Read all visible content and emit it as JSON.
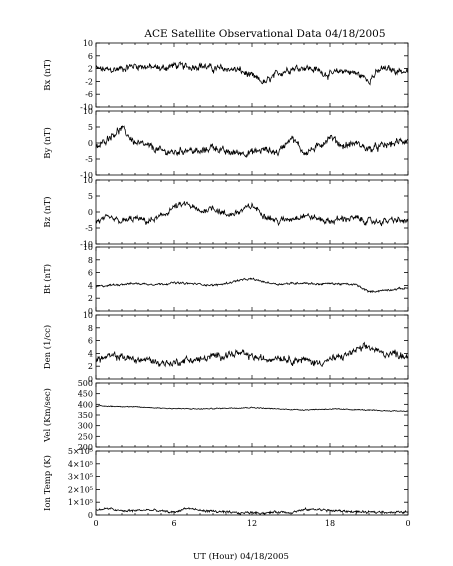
{
  "chart_data": {
    "type": "line",
    "title": "ACE Satellite Observational Data   04/18/2005",
    "xlabel": "UT (Hour)   04/18/2005",
    "x_ticks": [
      "0",
      "6",
      "12",
      "18",
      "0"
    ],
    "xlim": [
      0,
      24
    ],
    "panels": [
      {
        "ylabel": "Bx (nT)",
        "ylim": [
          -10,
          10
        ],
        "yticks": [
          "10",
          "6",
          "2",
          "-2",
          "-6",
          "-10"
        ],
        "series": [
          {
            "x": [
              0,
              1,
              2,
              3,
              4,
              5,
              6,
              7,
              8,
              9,
              10,
              11,
              12,
              13,
              14,
              15,
              16,
              17,
              18,
              19,
              20,
              21,
              22,
              23,
              24
            ],
            "values": [
              2,
              1.5,
              2,
              3,
              2.5,
              2,
              3,
              2.5,
              3,
              2,
              2,
              1.5,
              -0.5,
              -2.5,
              0.5,
              2,
              2.5,
              1.5,
              0,
              1.5,
              0.5,
              -1.5,
              2,
              1.5,
              1
            ]
          }
        ]
      },
      {
        "ylabel": "By (nT)",
        "ylim": [
          -10,
          10
        ],
        "yticks": [
          "10",
          "5",
          "0",
          "-5",
          "-10"
        ],
        "series": [
          {
            "x": [
              0,
              1,
              2,
              3,
              4,
              5,
              6,
              7,
              8,
              9,
              10,
              11,
              12,
              13,
              14,
              15,
              16,
              17,
              18,
              19,
              20,
              21,
              22,
              23,
              24
            ],
            "values": [
              -2,
              2,
              4.5,
              0,
              -1,
              -2.5,
              -3,
              -2,
              -3,
              -1,
              -3,
              -3,
              -3,
              -2,
              -3,
              2,
              -3,
              -1.5,
              2,
              -1,
              0,
              -2,
              -1,
              0,
              1
            ]
          }
        ]
      },
      {
        "ylabel": "Bz (nT)",
        "ylim": [
          -10,
          10
        ],
        "yticks": [
          "10",
          "5",
          "0",
          "-5",
          "-10"
        ],
        "series": [
          {
            "x": [
              0,
              1,
              2,
              3,
              4,
              5,
              6,
              7,
              8,
              9,
              10,
              11,
              12,
              13,
              14,
              15,
              16,
              17,
              18,
              19,
              20,
              21,
              22,
              23,
              24
            ],
            "values": [
              -3,
              -2,
              -3,
              -2,
              -3,
              -1.5,
              1.5,
              2.5,
              0,
              1.5,
              -1,
              0,
              2,
              -1,
              -3,
              -2,
              -1,
              -2,
              -3,
              -2,
              -2,
              -3,
              -3,
              -2.5,
              -3
            ]
          }
        ]
      },
      {
        "ylabel": "Bt (nT)",
        "ylim": [
          0,
          10
        ],
        "yticks": [
          "10",
          "8",
          "6",
          "4",
          "2",
          "0"
        ],
        "series": [
          {
            "x": [
              0,
              1,
              2,
              3,
              4,
              5,
              6,
              7,
              8,
              9,
              10,
              11,
              12,
              13,
              14,
              15,
              16,
              17,
              18,
              19,
              20,
              21,
              22,
              23,
              24
            ],
            "values": [
              3.8,
              4,
              4.2,
              4.3,
              4.2,
              4.2,
              4.4,
              4.3,
              4.2,
              4,
              4.3,
              4.8,
              5,
              4.5,
              4.2,
              4.3,
              4.4,
              4.2,
              4.3,
              4.2,
              4.1,
              3,
              3.2,
              3.4,
              3.6
            ]
          }
        ]
      },
      {
        "ylabel": "Den (1/cc)",
        "ylim": [
          0,
          10
        ],
        "yticks": [
          "10",
          "8",
          "6",
          "4",
          "2",
          "0"
        ],
        "series": [
          {
            "x": [
              0,
              1,
              2,
              3,
              4,
              5,
              6,
              7,
              8,
              9,
              10,
              11,
              12,
              13,
              14,
              15,
              16,
              17,
              18,
              19,
              20,
              21,
              22,
              23,
              24
            ],
            "values": [
              3,
              3.5,
              3.5,
              3,
              3,
              2.5,
              2.5,
              3,
              3,
              3.5,
              3.8,
              4,
              3.5,
              3,
              3.5,
              3,
              3,
              2.5,
              3,
              3.5,
              4.5,
              5,
              4,
              4,
              3.5
            ]
          }
        ]
      },
      {
        "ylabel": "Vel (Km/sec)",
        "ylim": [
          200,
          500
        ],
        "yticks": [
          "500",
          "450",
          "400",
          "350",
          "300",
          "250",
          "200"
        ],
        "series": [
          {
            "x": [
              0,
              2,
              4,
              6,
              8,
              10,
              12,
              14,
              16,
              18,
              20,
              22,
              24
            ],
            "values": [
              392,
              390,
              385,
              380,
              378,
              382,
              385,
              378,
              374,
              378,
              375,
              370,
              368
            ]
          }
        ]
      },
      {
        "ylabel": "Ion Temp (K)",
        "ylim": [
          0,
          500000
        ],
        "yticks": [
          "5×10⁵",
          "4×10⁵",
          "3×10⁵",
          "2×10⁵",
          "1×10⁵",
          "0"
        ],
        "series": [
          {
            "x": [
              0,
              1,
              2,
              3,
              4,
              5,
              6,
              7,
              8,
              9,
              10,
              11,
              12,
              13,
              14,
              15,
              16,
              17,
              18,
              19,
              20,
              21,
              22,
              23,
              24
            ],
            "values": [
              40000,
              50000,
              30000,
              35000,
              40000,
              30000,
              20000,
              55000,
              35000,
              30000,
              20000,
              15000,
              20000,
              15000,
              25000,
              20000,
              40000,
              45000,
              35000,
              30000,
              25000,
              20000,
              25000,
              20000,
              25000
            ]
          }
        ]
      }
    ]
  }
}
